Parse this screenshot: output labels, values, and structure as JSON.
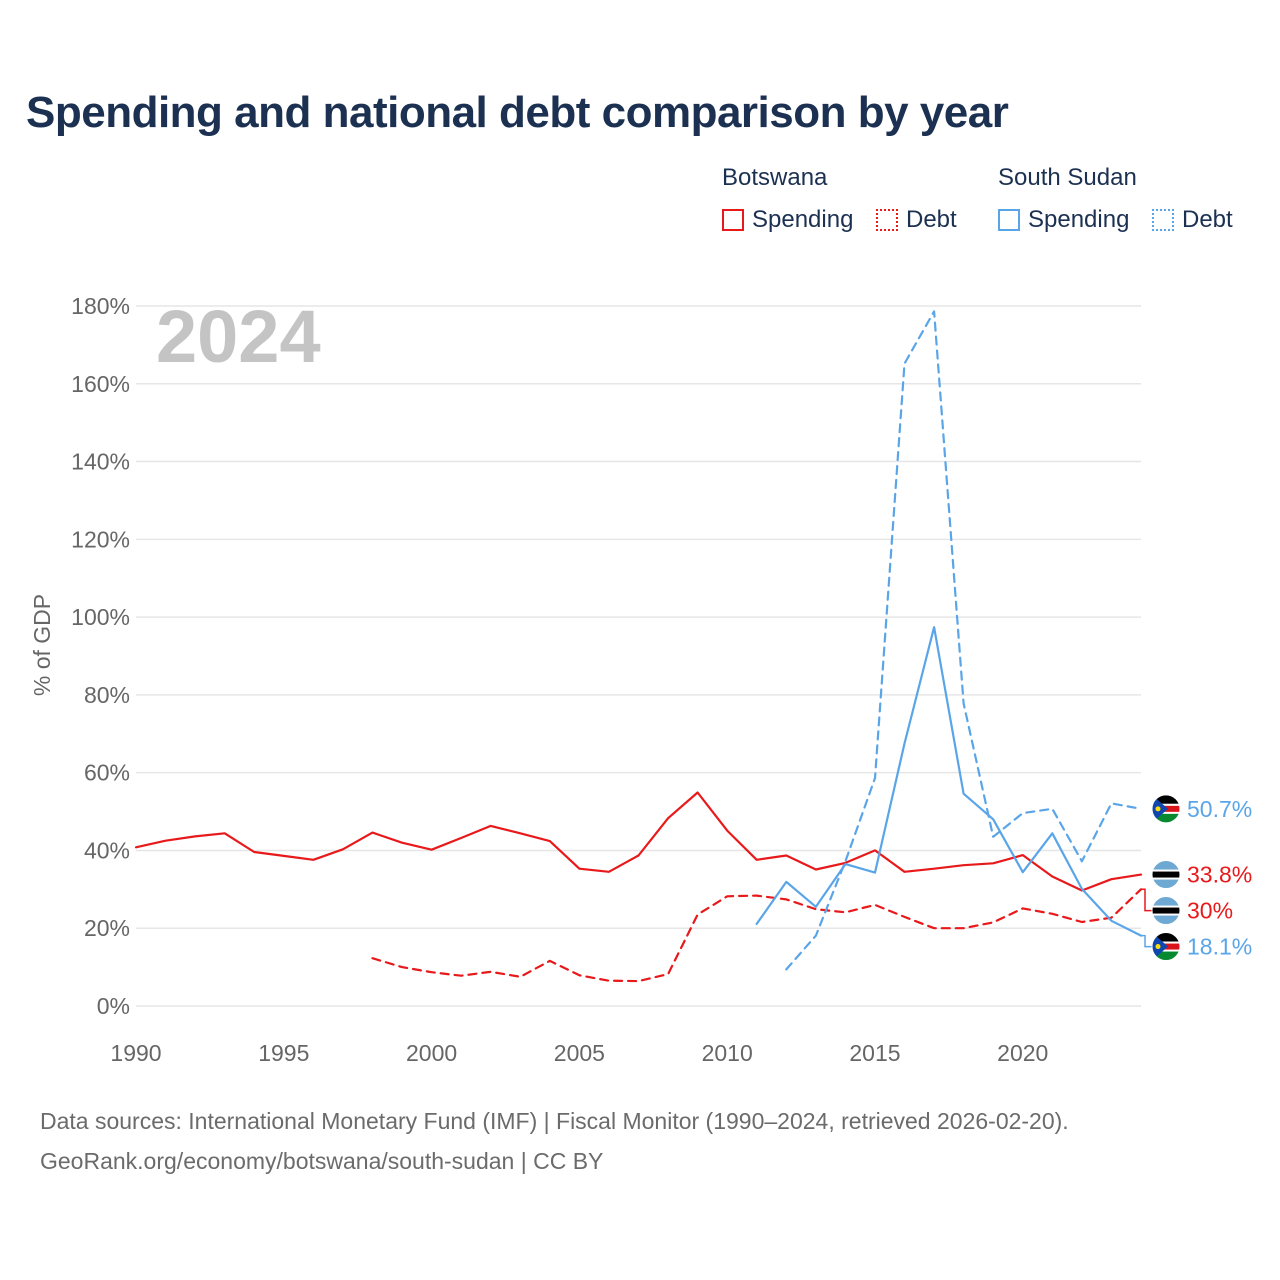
{
  "title": "Spending and national debt comparison by year",
  "legend": {
    "groups": [
      {
        "name": "Botswana",
        "items": [
          "Spending",
          "Debt"
        ]
      },
      {
        "name": "South Sudan",
        "items": [
          "Spending",
          "Debt"
        ]
      }
    ]
  },
  "colors": {
    "botswana": "#e8191b",
    "south_sudan": "#5aa5e8",
    "title": "#1c3152",
    "watermark": "#c4c4c4"
  },
  "source_line1": "Data sources: International Monetary Fund (IMF) | Fiscal Monitor (1990–2024, retrieved 2026-02-20).",
  "source_line2": "GeoRank.org/economy/botswana/south-sudan | CC BY",
  "chart_data": {
    "type": "line",
    "title": "Spending and national debt comparison by year",
    "watermark_year": "2024",
    "ylabel": "% of GDP",
    "xlabel": "",
    "xlim": [
      1990,
      2024
    ],
    "ylim": [
      0,
      180
    ],
    "x_ticks": [
      "1990",
      "1995",
      "2000",
      "2005",
      "2010",
      "2015",
      "2020"
    ],
    "y_ticks": [
      "0%",
      "20%",
      "40%",
      "60%",
      "80%",
      "100%",
      "120%",
      "140%",
      "160%",
      "180%"
    ],
    "series": [
      {
        "name": "Botswana Spending",
        "country": "botswana",
        "style": "solid",
        "x": [
          1990,
          1991,
          1992,
          1993,
          1994,
          1995,
          1996,
          1997,
          1998,
          1999,
          2000,
          2001,
          2002,
          2003,
          2004,
          2005,
          2006,
          2007,
          2008,
          2009,
          2010,
          2011,
          2012,
          2013,
          2014,
          2015,
          2016,
          2017,
          2018,
          2019,
          2020,
          2021,
          2022,
          2023,
          2024
        ],
        "values": [
          40.8,
          42.5,
          43.6,
          44.4,
          39.6,
          38.6,
          37.6,
          40.3,
          44.6,
          42.0,
          40.2,
          43.2,
          46.3,
          44.4,
          42.4,
          35.3,
          34.5,
          38.7,
          48.3,
          54.9,
          45.1,
          37.6,
          38.7,
          35.1,
          36.8,
          40.0,
          34.5,
          35.3,
          36.2,
          36.7,
          38.8,
          33.3,
          29.7,
          32.6,
          33.8
        ],
        "end_label": "33.8%"
      },
      {
        "name": "Botswana Debt",
        "country": "botswana",
        "style": "dashed",
        "x": [
          1998,
          1999,
          2000,
          2001,
          2002,
          2003,
          2004,
          2005,
          2006,
          2007,
          2008,
          2009,
          2010,
          2011,
          2012,
          2013,
          2014,
          2015,
          2016,
          2017,
          2018,
          2019,
          2020,
          2021,
          2022,
          2023,
          2024
        ],
        "values": [
          12.3,
          10.0,
          8.7,
          7.8,
          8.8,
          7.5,
          11.6,
          7.9,
          6.5,
          6.4,
          8.2,
          23.5,
          28.2,
          28.4,
          27.4,
          24.9,
          24.1,
          26.0,
          22.9,
          20.0,
          20.0,
          21.5,
          25.1,
          23.7,
          21.6,
          22.7,
          30.0
        ],
        "end_label": "30%"
      },
      {
        "name": "South Sudan Spending",
        "country": "south_sudan",
        "style": "solid",
        "x": [
          2011,
          2012,
          2013,
          2014,
          2015,
          2016,
          2017,
          2018,
          2019,
          2020,
          2021,
          2022,
          2023,
          2024
        ],
        "values": [
          21.1,
          31.9,
          25.5,
          36.5,
          34.3,
          67.5,
          97.4,
          54.6,
          48.0,
          34.4,
          44.4,
          30.1,
          21.9,
          18.1
        ],
        "end_label": "18.1%"
      },
      {
        "name": "South Sudan Debt",
        "country": "south_sudan",
        "style": "dashed",
        "x": [
          2012,
          2013,
          2014,
          2015,
          2016,
          2017,
          2018,
          2019,
          2020,
          2021,
          2022,
          2023,
          2024
        ],
        "values": [
          9.4,
          18.1,
          37.2,
          58.6,
          165.2,
          178.6,
          77.8,
          43.5,
          49.6,
          50.7,
          37.2,
          52.1,
          50.7
        ],
        "end_label": "50.7%"
      }
    ]
  }
}
